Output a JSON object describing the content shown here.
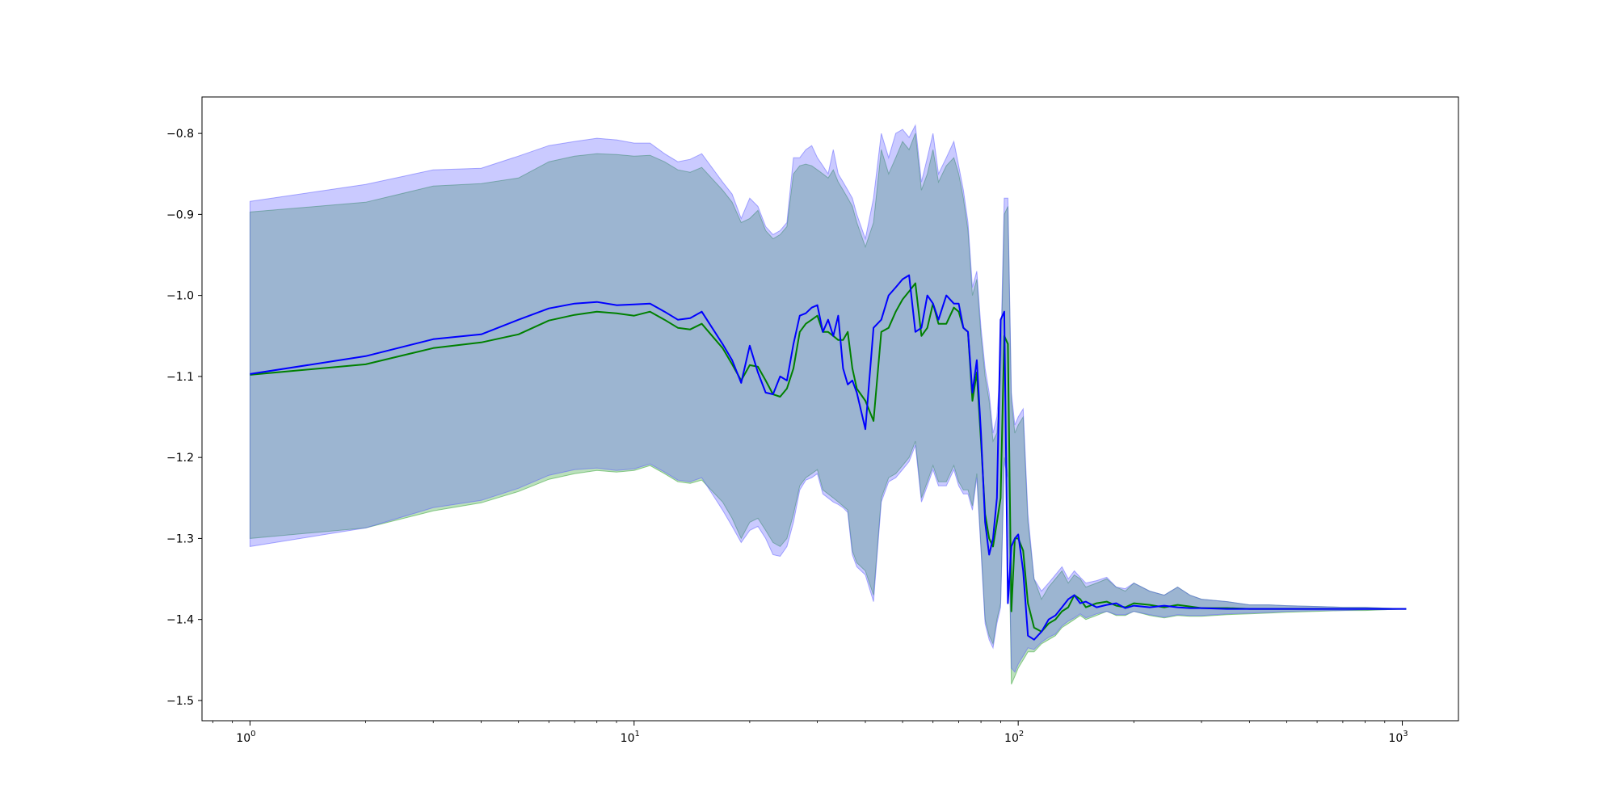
{
  "chart_data": {
    "type": "line",
    "title": "",
    "xlabel": "",
    "ylabel": "",
    "xscale": "log",
    "xlim": [
      0.75,
      1400
    ],
    "ylim": [
      -1.525,
      -0.755
    ],
    "grid": false,
    "legend": "none",
    "xticks": [
      {
        "value": 1,
        "label": "10",
        "exp": "0"
      },
      {
        "value": 10,
        "label": "10",
        "exp": "1"
      },
      {
        "value": 100,
        "label": "10",
        "exp": "2"
      },
      {
        "value": 1000,
        "label": "10",
        "exp": "3"
      }
    ],
    "yticks": [
      {
        "value": -0.8,
        "label": "−0.8"
      },
      {
        "value": -0.9,
        "label": "−0.9"
      },
      {
        "value": -1.0,
        "label": "−1.0"
      },
      {
        "value": -1.1,
        "label": "−1.1"
      },
      {
        "value": -1.2,
        "label": "−1.2"
      },
      {
        "value": -1.3,
        "label": "−1.3"
      },
      {
        "value": -1.4,
        "label": "−1.4"
      },
      {
        "value": -1.5,
        "label": "−1.5"
      }
    ],
    "series": [
      {
        "color": "#008000",
        "band_color": "#2ca02c",
        "x": [
          1,
          2,
          3,
          4,
          5,
          6,
          7,
          8,
          9,
          10,
          11,
          12,
          13,
          14,
          15,
          17,
          18,
          19,
          20,
          21,
          22,
          23,
          24,
          25,
          26,
          27,
          28,
          29,
          30,
          31,
          32,
          33,
          34,
          35,
          36,
          37,
          38,
          40,
          42,
          44,
          46,
          48,
          50,
          52,
          54,
          56,
          58,
          60,
          62,
          65,
          68,
          70,
          72,
          74,
          76,
          78,
          80,
          82,
          84,
          86,
          88,
          90,
          92,
          94,
          96,
          98,
          100,
          103,
          106,
          110,
          115,
          120,
          125,
          130,
          135,
          140,
          145,
          150,
          160,
          170,
          180,
          190,
          200,
          220,
          240,
          260,
          280,
          300,
          350,
          400,
          450,
          500,
          600,
          700,
          800,
          900,
          1024
        ],
        "y": [
          -1.098,
          -1.085,
          -1.065,
          -1.058,
          -1.048,
          -1.031,
          -1.024,
          -1.02,
          -1.022,
          -1.025,
          -1.02,
          -1.03,
          -1.04,
          -1.042,
          -1.035,
          -1.065,
          -1.085,
          -1.105,
          -1.086,
          -1.088,
          -1.105,
          -1.122,
          -1.125,
          -1.115,
          -1.09,
          -1.045,
          -1.035,
          -1.03,
          -1.025,
          -1.045,
          -1.045,
          -1.05,
          -1.055,
          -1.055,
          -1.045,
          -1.09,
          -1.115,
          -1.13,
          -1.155,
          -1.045,
          -1.04,
          -1.02,
          -1.005,
          -0.995,
          -0.985,
          -1.05,
          -1.04,
          -1.01,
          -1.035,
          -1.035,
          -1.015,
          -1.02,
          -1.04,
          -1.045,
          -1.13,
          -1.095,
          -1.18,
          -1.27,
          -1.3,
          -1.31,
          -1.28,
          -1.25,
          -1.05,
          -1.06,
          -1.39,
          -1.3,
          -1.3,
          -1.315,
          -1.38,
          -1.41,
          -1.415,
          -1.405,
          -1.4,
          -1.39,
          -1.385,
          -1.37,
          -1.375,
          -1.385,
          -1.38,
          -1.378,
          -1.383,
          -1.385,
          -1.38,
          -1.382,
          -1.385,
          -1.382,
          -1.384,
          -1.386,
          -1.386,
          -1.387,
          -1.387,
          -1.387,
          -1.387,
          -1.387,
          -1.387,
          -1.387,
          -1.387
        ],
        "upper": [
          -0.897,
          -0.885,
          -0.865,
          -0.862,
          -0.855,
          -0.835,
          -0.828,
          -0.825,
          -0.826,
          -0.828,
          -0.827,
          -0.835,
          -0.845,
          -0.848,
          -0.842,
          -0.87,
          -0.885,
          -0.91,
          -0.905,
          -0.895,
          -0.92,
          -0.93,
          -0.925,
          -0.915,
          -0.85,
          -0.84,
          -0.838,
          -0.84,
          -0.845,
          -0.85,
          -0.855,
          -0.845,
          -0.86,
          -0.87,
          -0.88,
          -0.89,
          -0.91,
          -0.94,
          -0.91,
          -0.82,
          -0.85,
          -0.83,
          -0.81,
          -0.82,
          -0.8,
          -0.87,
          -0.85,
          -0.82,
          -0.86,
          -0.84,
          -0.83,
          -0.85,
          -0.88,
          -0.92,
          -1.0,
          -0.98,
          -1.05,
          -1.1,
          -1.13,
          -1.18,
          -1.17,
          -1.1,
          -0.9,
          -0.89,
          -1.13,
          -1.17,
          -1.16,
          -1.15,
          -1.28,
          -1.35,
          -1.375,
          -1.36,
          -1.35,
          -1.34,
          -1.355,
          -1.345,
          -1.35,
          -1.36,
          -1.355,
          -1.35,
          -1.36,
          -1.365,
          -1.355,
          -1.365,
          -1.37,
          -1.36,
          -1.37,
          -1.375,
          -1.378,
          -1.382,
          -1.382,
          -1.383,
          -1.384,
          -1.385,
          -1.385,
          -1.386,
          -1.387
        ],
        "lower": [
          -1.3,
          -1.287,
          -1.266,
          -1.256,
          -1.242,
          -1.227,
          -1.22,
          -1.216,
          -1.218,
          -1.216,
          -1.21,
          -1.22,
          -1.23,
          -1.232,
          -1.228,
          -1.255,
          -1.275,
          -1.3,
          -1.28,
          -1.275,
          -1.29,
          -1.305,
          -1.31,
          -1.3,
          -1.27,
          -1.235,
          -1.225,
          -1.22,
          -1.215,
          -1.24,
          -1.245,
          -1.25,
          -1.255,
          -1.26,
          -1.265,
          -1.315,
          -1.33,
          -1.34,
          -1.37,
          -1.25,
          -1.225,
          -1.22,
          -1.21,
          -1.2,
          -1.18,
          -1.25,
          -1.23,
          -1.21,
          -1.23,
          -1.23,
          -1.21,
          -1.23,
          -1.24,
          -1.24,
          -1.26,
          -1.22,
          -1.31,
          -1.4,
          -1.42,
          -1.43,
          -1.4,
          -1.38,
          -1.2,
          -1.22,
          -1.48,
          -1.47,
          -1.46,
          -1.45,
          -1.44,
          -1.44,
          -1.43,
          -1.425,
          -1.42,
          -1.41,
          -1.405,
          -1.4,
          -1.395,
          -1.4,
          -1.395,
          -1.39,
          -1.395,
          -1.395,
          -1.39,
          -1.395,
          -1.398,
          -1.395,
          -1.396,
          -1.396,
          -1.394,
          -1.393,
          -1.392,
          -1.391,
          -1.39,
          -1.389,
          -1.389,
          -1.388,
          -1.387
        ]
      },
      {
        "color": "#0000ff",
        "band_color": "#5a5aff",
        "x": [
          1,
          2,
          3,
          4,
          5,
          6,
          7,
          8,
          9,
          10,
          11,
          12,
          13,
          14,
          15,
          17,
          18,
          19,
          20,
          21,
          22,
          23,
          24,
          25,
          26,
          27,
          28,
          29,
          30,
          31,
          32,
          33,
          34,
          35,
          36,
          37,
          38,
          40,
          42,
          44,
          46,
          48,
          50,
          52,
          54,
          56,
          58,
          60,
          62,
          65,
          68,
          70,
          72,
          74,
          76,
          78,
          80,
          82,
          84,
          86,
          88,
          90,
          92,
          94,
          96,
          98,
          100,
          103,
          106,
          110,
          115,
          120,
          125,
          130,
          135,
          140,
          145,
          150,
          160,
          170,
          180,
          190,
          200,
          220,
          240,
          260,
          280,
          300,
          350,
          400,
          450,
          500,
          600,
          700,
          800,
          900,
          1024
        ],
        "y": [
          -1.097,
          -1.075,
          -1.054,
          -1.048,
          -1.03,
          -1.016,
          -1.01,
          -1.008,
          -1.012,
          -1.011,
          -1.01,
          -1.02,
          -1.03,
          -1.028,
          -1.02,
          -1.06,
          -1.08,
          -1.108,
          -1.062,
          -1.095,
          -1.12,
          -1.122,
          -1.1,
          -1.105,
          -1.06,
          -1.025,
          -1.022,
          -1.015,
          -1.012,
          -1.045,
          -1.03,
          -1.05,
          -1.025,
          -1.09,
          -1.11,
          -1.105,
          -1.12,
          -1.165,
          -1.04,
          -1.03,
          -1.0,
          -0.99,
          -0.98,
          -0.975,
          -1.045,
          -1.04,
          -1.0,
          -1.01,
          -1.03,
          -1.0,
          -1.01,
          -1.01,
          -1.04,
          -1.045,
          -1.12,
          -1.08,
          -1.17,
          -1.28,
          -1.32,
          -1.3,
          -1.25,
          -1.03,
          -1.02,
          -1.38,
          -1.31,
          -1.3,
          -1.295,
          -1.34,
          -1.42,
          -1.425,
          -1.415,
          -1.4,
          -1.395,
          -1.385,
          -1.375,
          -1.37,
          -1.38,
          -1.378,
          -1.385,
          -1.382,
          -1.38,
          -1.386,
          -1.383,
          -1.385,
          -1.383,
          -1.385,
          -1.386,
          -1.386,
          -1.387,
          -1.387,
          -1.387,
          -1.387,
          -1.387,
          -1.387,
          -1.387,
          -1.387,
          -1.387
        ],
        "upper": [
          -0.884,
          -0.863,
          -0.845,
          -0.843,
          -0.828,
          -0.815,
          -0.81,
          -0.806,
          -0.808,
          -0.812,
          -0.812,
          -0.825,
          -0.835,
          -0.832,
          -0.825,
          -0.86,
          -0.875,
          -0.905,
          -0.88,
          -0.89,
          -0.915,
          -0.925,
          -0.92,
          -0.91,
          -0.83,
          -0.83,
          -0.82,
          -0.815,
          -0.83,
          -0.84,
          -0.85,
          -0.82,
          -0.85,
          -0.86,
          -0.87,
          -0.88,
          -0.9,
          -0.93,
          -0.88,
          -0.8,
          -0.83,
          -0.8,
          -0.795,
          -0.805,
          -0.79,
          -0.86,
          -0.83,
          -0.8,
          -0.85,
          -0.83,
          -0.81,
          -0.84,
          -0.87,
          -0.91,
          -0.99,
          -0.97,
          -1.04,
          -1.09,
          -1.12,
          -1.17,
          -1.15,
          -1.08,
          -0.88,
          -0.88,
          -1.12,
          -1.16,
          -1.15,
          -1.14,
          -1.27,
          -1.35,
          -1.365,
          -1.355,
          -1.345,
          -1.335,
          -1.35,
          -1.34,
          -1.348,
          -1.355,
          -1.352,
          -1.348,
          -1.36,
          -1.362,
          -1.355,
          -1.365,
          -1.37,
          -1.36,
          -1.37,
          -1.375,
          -1.378,
          -1.382,
          -1.382,
          -1.383,
          -1.384,
          -1.385,
          -1.385,
          -1.386,
          -1.387
        ],
        "lower": [
          -1.31,
          -1.287,
          -1.262,
          -1.253,
          -1.238,
          -1.222,
          -1.215,
          -1.213,
          -1.216,
          -1.214,
          -1.208,
          -1.218,
          -1.228,
          -1.23,
          -1.225,
          -1.265,
          -1.285,
          -1.305,
          -1.29,
          -1.285,
          -1.3,
          -1.32,
          -1.322,
          -1.31,
          -1.28,
          -1.24,
          -1.228,
          -1.225,
          -1.22,
          -1.245,
          -1.25,
          -1.255,
          -1.258,
          -1.262,
          -1.268,
          -1.32,
          -1.335,
          -1.345,
          -1.378,
          -1.255,
          -1.23,
          -1.225,
          -1.215,
          -1.205,
          -1.185,
          -1.255,
          -1.235,
          -1.215,
          -1.235,
          -1.235,
          -1.215,
          -1.235,
          -1.245,
          -1.245,
          -1.265,
          -1.225,
          -1.315,
          -1.405,
          -1.425,
          -1.435,
          -1.405,
          -1.385,
          -1.205,
          -1.225,
          -1.46,
          -1.465,
          -1.455,
          -1.445,
          -1.435,
          -1.437,
          -1.428,
          -1.422,
          -1.418,
          -1.408,
          -1.402,
          -1.398,
          -1.393,
          -1.398,
          -1.393,
          -1.39,
          -1.394,
          -1.394,
          -1.39,
          -1.394,
          -1.397,
          -1.394,
          -1.395,
          -1.395,
          -1.393,
          -1.392,
          -1.391,
          -1.39,
          -1.389,
          -1.389,
          -1.388,
          -1.388,
          -1.387
        ]
      }
    ]
  }
}
